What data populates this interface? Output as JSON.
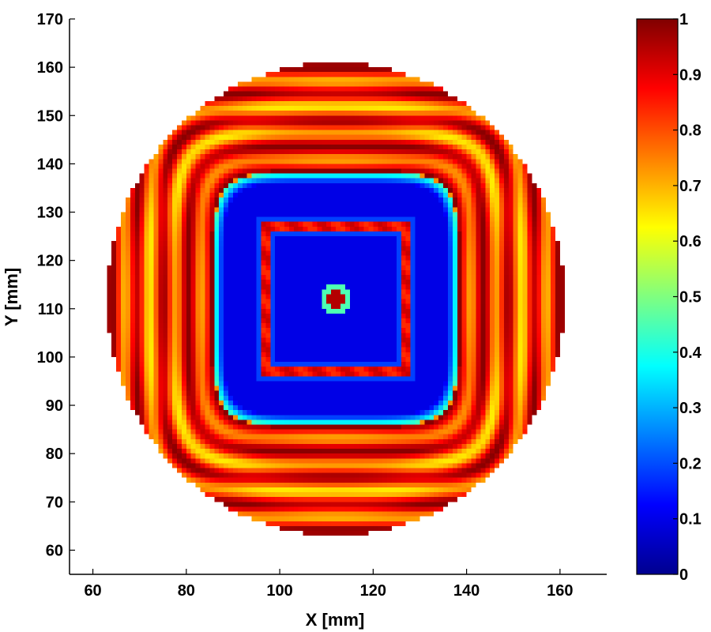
{
  "chart_data": {
    "type": "heatmap",
    "title": "",
    "xlabel": "X [mm]",
    "ylabel": "Y [mm]",
    "xlim": [
      55,
      170
    ],
    "ylim": [
      55,
      170
    ],
    "x_ticks": [
      "60",
      "80",
      "100",
      "120",
      "140",
      "160"
    ],
    "x_tick_values": [
      60,
      80,
      100,
      120,
      140,
      160
    ],
    "y_ticks": [
      "60",
      "70",
      "80",
      "90",
      "100",
      "110",
      "120",
      "130",
      "140",
      "150",
      "160",
      "170"
    ],
    "y_tick_values": [
      60,
      70,
      80,
      90,
      100,
      110,
      120,
      130,
      140,
      150,
      160,
      170
    ],
    "grid": false,
    "colormap": "jet",
    "colorbar": {
      "range": [
        0,
        1
      ],
      "ticks": [
        "0",
        "0.1",
        "0.2",
        "0.3",
        "0.4",
        "0.5",
        "0.6",
        "0.7",
        "0.8",
        "0.9",
        "1"
      ],
      "tick_values": [
        0,
        0.1,
        0.2,
        0.3,
        0.4,
        0.5,
        0.6,
        0.7,
        0.8,
        0.9,
        1
      ]
    },
    "field": {
      "domain_shape": "disc",
      "center": [
        112,
        112
      ],
      "radius": 49,
      "outer_region_value": 0.92,
      "inner_square": {
        "x_range": [
          86,
          138
        ],
        "y_range": [
          86,
          138
        ],
        "value": 0.1
      },
      "frame": {
        "x_range": [
          97,
          127
        ],
        "y_range": [
          97,
          127
        ],
        "value": 0.88
      },
      "center_spot": {
        "center": [
          112,
          112
        ],
        "radius": 2,
        "value": 0.95
      }
    }
  }
}
